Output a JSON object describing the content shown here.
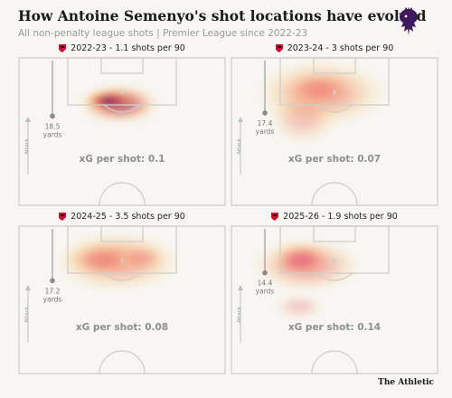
{
  "header": {
    "title": "How Antoine Semenyo's shot locations have evolved",
    "subtitle": "All non-penalty league shots | Premier League since 2022-23"
  },
  "footer": {
    "brand": "The Athletic"
  },
  "colors": {
    "heat_low": "#fde9a0",
    "heat_mid": "#f5a25a",
    "heat_high": "#e8505b",
    "heat_peak": "#3c1a78",
    "pitch_line": "#d0cec8",
    "crest_red": "#c8102e"
  },
  "chart_data": [
    {
      "type": "heatmap",
      "title": "2022-23 - 1.1 shots per 90",
      "season": "2022-23",
      "shots_per_90": 1.1,
      "avg_distance_yards": 18.5,
      "distance_label": "18.5\nyards",
      "attack_label": "Attack",
      "xg_per_shot": 0.1,
      "xg_label": "xG per shot: 0.1",
      "density_peak": "high"
    },
    {
      "type": "heatmap",
      "title": "2023-24 - 3 shots per 90",
      "season": "2023-24",
      "shots_per_90": 3,
      "avg_distance_yards": 17.4,
      "distance_label": "17.4\nyards",
      "attack_label": "Attack",
      "xg_per_shot": 0.07,
      "xg_label": "xG per shot: 0.07",
      "density_peak": "low"
    },
    {
      "type": "heatmap",
      "title": "2024-25 - 3.5 shots per 90",
      "season": "2024-25",
      "shots_per_90": 3.5,
      "avg_distance_yards": 17.2,
      "distance_label": "17.2\nyards",
      "attack_label": "Attack",
      "xg_per_shot": 0.08,
      "xg_label": "xG per shot: 0.08",
      "density_peak": "low"
    },
    {
      "type": "heatmap",
      "title": "2025-26 - 1.9 shots per 90",
      "season": "2025-26",
      "shots_per_90": 1.9,
      "avg_distance_yards": 14.4,
      "distance_label": "14.4\nyards",
      "attack_label": "Attack",
      "xg_per_shot": 0.14,
      "xg_label": "xG per shot: 0.14",
      "density_peak": "medium"
    }
  ]
}
